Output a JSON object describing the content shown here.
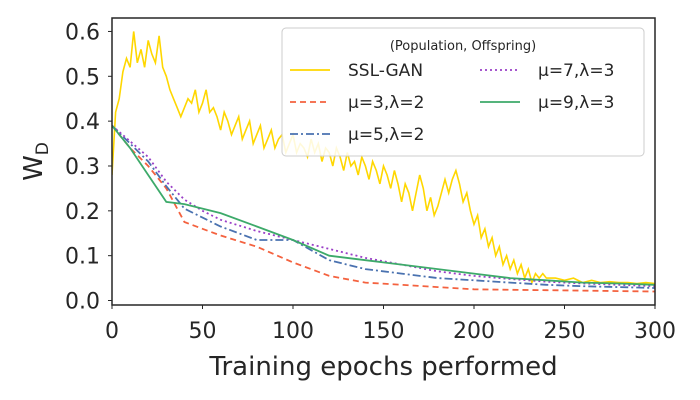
{
  "chart_data": {
    "type": "line",
    "xlabel": "Training epochs performed",
    "ylabel": "W",
    "ylabel_sub": "D",
    "xlim": [
      0,
      300
    ],
    "ylim": [
      -0.01,
      0.63
    ],
    "xticks": [
      0,
      50,
      100,
      150,
      200,
      250,
      300
    ],
    "yticks": [
      0.0,
      0.1,
      0.2,
      0.3,
      0.4,
      0.5,
      0.6
    ],
    "xtick_labels": [
      "0",
      "50",
      "100",
      "150",
      "200",
      "250",
      "300"
    ],
    "ytick_labels": [
      "0.0",
      "0.1",
      "0.2",
      "0.3",
      "0.4",
      "0.5",
      "0.6"
    ],
    "legend_title": "(Population, Offspring)",
    "legend_position": "top-right",
    "series": [
      {
        "name": "SSL-GAN",
        "color": "#ffd700",
        "dash": "solid",
        "x": [
          0,
          2,
          4,
          6,
          8,
          10,
          12,
          14,
          16,
          18,
          20,
          22,
          24,
          26,
          28,
          30,
          32,
          34,
          36,
          38,
          40,
          42,
          44,
          46,
          48,
          50,
          52,
          54,
          56,
          58,
          60,
          62,
          64,
          66,
          68,
          70,
          72,
          74,
          76,
          78,
          80,
          82,
          84,
          86,
          88,
          90,
          92,
          94,
          96,
          98,
          100,
          102,
          104,
          106,
          108,
          110,
          112,
          114,
          116,
          118,
          120,
          122,
          124,
          126,
          128,
          130,
          132,
          134,
          136,
          138,
          140,
          142,
          144,
          146,
          148,
          150,
          152,
          154,
          156,
          158,
          160,
          162,
          164,
          166,
          168,
          170,
          172,
          174,
          176,
          178,
          180,
          182,
          184,
          186,
          188,
          190,
          192,
          194,
          196,
          198,
          200,
          202,
          204,
          206,
          208,
          210,
          212,
          214,
          216,
          218,
          220,
          222,
          224,
          226,
          228,
          230,
          232,
          234,
          236,
          238,
          240,
          245,
          250,
          255,
          260,
          265,
          270,
          275,
          280,
          285,
          290,
          295,
          300
        ],
        "values": [
          0.28,
          0.42,
          0.45,
          0.51,
          0.54,
          0.52,
          0.6,
          0.53,
          0.56,
          0.52,
          0.58,
          0.55,
          0.53,
          0.59,
          0.52,
          0.5,
          0.47,
          0.45,
          0.43,
          0.41,
          0.43,
          0.45,
          0.44,
          0.47,
          0.42,
          0.44,
          0.47,
          0.42,
          0.43,
          0.41,
          0.38,
          0.42,
          0.4,
          0.37,
          0.39,
          0.41,
          0.36,
          0.38,
          0.4,
          0.35,
          0.37,
          0.39,
          0.34,
          0.36,
          0.38,
          0.34,
          0.36,
          0.37,
          0.33,
          0.35,
          0.37,
          0.33,
          0.35,
          0.34,
          0.32,
          0.36,
          0.33,
          0.35,
          0.31,
          0.34,
          0.33,
          0.3,
          0.34,
          0.32,
          0.29,
          0.33,
          0.3,
          0.31,
          0.28,
          0.32,
          0.3,
          0.27,
          0.31,
          0.29,
          0.26,
          0.3,
          0.28,
          0.25,
          0.29,
          0.26,
          0.22,
          0.26,
          0.24,
          0.2,
          0.24,
          0.28,
          0.25,
          0.2,
          0.23,
          0.19,
          0.21,
          0.24,
          0.27,
          0.24,
          0.27,
          0.29,
          0.26,
          0.22,
          0.24,
          0.2,
          0.17,
          0.19,
          0.14,
          0.16,
          0.12,
          0.14,
          0.1,
          0.12,
          0.08,
          0.1,
          0.07,
          0.09,
          0.06,
          0.08,
          0.05,
          0.07,
          0.04,
          0.06,
          0.05,
          0.06,
          0.05,
          0.05,
          0.045,
          0.05,
          0.04,
          0.045,
          0.04,
          0.042,
          0.04,
          0.04,
          0.038,
          0.04,
          0.038
        ]
      },
      {
        "name": "μ=3,λ=2",
        "color": "#f4623f",
        "dash": "dashed",
        "x": [
          0,
          10,
          20,
          30,
          40,
          50,
          60,
          80,
          100,
          120,
          140,
          160,
          180,
          200,
          220,
          240,
          260,
          280,
          300
        ],
        "values": [
          0.39,
          0.34,
          0.3,
          0.25,
          0.175,
          0.16,
          0.145,
          0.12,
          0.085,
          0.055,
          0.04,
          0.035,
          0.03,
          0.025,
          0.024,
          0.023,
          0.022,
          0.021,
          0.02
        ]
      },
      {
        "name": "μ=5,λ=2",
        "color": "#4a72b0",
        "dash": "dashdot",
        "x": [
          0,
          10,
          20,
          30,
          40,
          50,
          60,
          80,
          100,
          120,
          140,
          160,
          180,
          200,
          220,
          240,
          260,
          280,
          300
        ],
        "values": [
          0.39,
          0.35,
          0.31,
          0.255,
          0.205,
          0.185,
          0.165,
          0.135,
          0.135,
          0.09,
          0.07,
          0.06,
          0.05,
          0.045,
          0.04,
          0.035,
          0.032,
          0.03,
          0.028
        ]
      },
      {
        "name": "μ=7,λ=3",
        "color": "#9a3fc7",
        "dash": "dotted",
        "x": [
          0,
          10,
          20,
          30,
          40,
          50,
          60,
          80,
          100,
          120,
          140,
          160,
          180,
          200,
          220,
          240,
          260,
          280,
          300
        ],
        "values": [
          0.39,
          0.355,
          0.32,
          0.265,
          0.225,
          0.2,
          0.18,
          0.155,
          0.135,
          0.115,
          0.095,
          0.08,
          0.065,
          0.055,
          0.048,
          0.042,
          0.038,
          0.035,
          0.032
        ]
      },
      {
        "name": "μ=9,λ=3",
        "color": "#3daa6a",
        "dash": "solid",
        "x": [
          0,
          10,
          20,
          30,
          40,
          50,
          60,
          80,
          100,
          120,
          140,
          160,
          180,
          200,
          220,
          240,
          260,
          280,
          300
        ],
        "values": [
          0.39,
          0.34,
          0.28,
          0.22,
          0.215,
          0.205,
          0.195,
          0.165,
          0.135,
          0.1,
          0.09,
          0.08,
          0.07,
          0.06,
          0.05,
          0.045,
          0.04,
          0.038,
          0.035
        ]
      }
    ]
  }
}
